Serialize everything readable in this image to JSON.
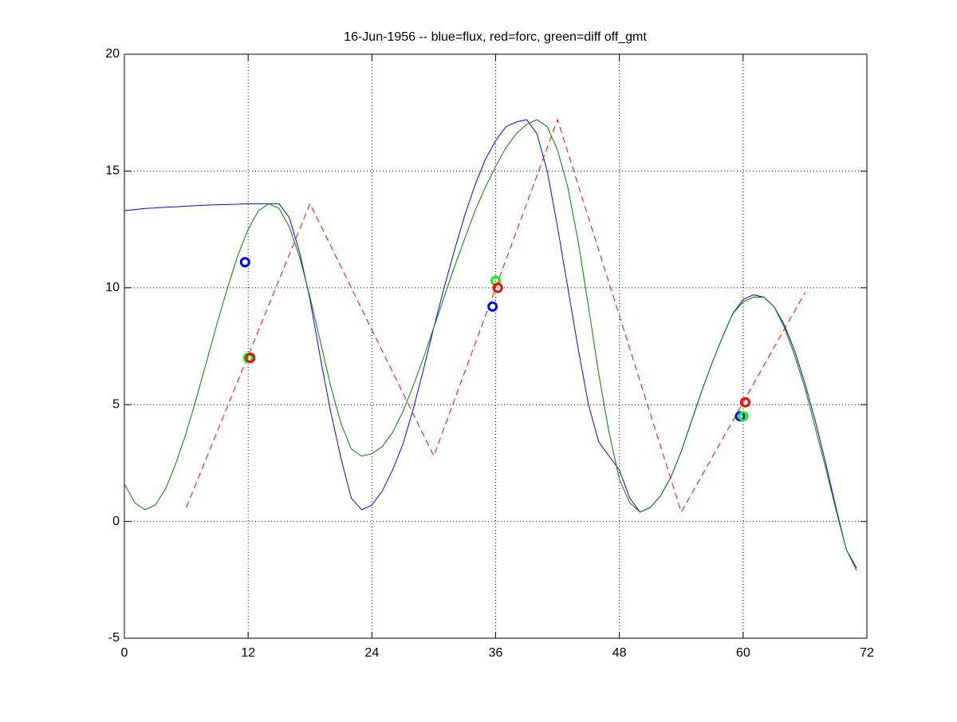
{
  "chart_data": {
    "type": "line",
    "title": "16-Jun-1956 -- blue=flux, red=forc, green=diff off_gmt",
    "xlim": [
      0,
      72
    ],
    "xticks": [
      0,
      12,
      24,
      36,
      48,
      60,
      72
    ],
    "ylim": [
      -5,
      20
    ],
    "yticks": [
      -5,
      0,
      5,
      10,
      15,
      20
    ],
    "grid": true,
    "series": [
      {
        "color": "#0000ff",
        "style": "solid",
        "x": [
          0,
          1,
          2,
          3,
          4,
          5,
          6,
          7,
          8,
          9,
          10,
          11,
          12,
          13,
          14,
          15,
          16,
          17,
          18,
          19,
          20,
          21,
          22,
          23,
          24,
          25,
          26,
          27,
          28,
          29,
          30,
          31,
          32,
          33,
          34,
          35,
          36,
          37,
          38,
          39,
          40,
          41,
          42,
          43,
          44,
          45,
          46,
          47,
          48,
          49,
          50,
          51,
          52,
          53,
          54,
          55,
          56,
          57,
          58,
          59,
          60,
          61,
          62,
          63,
          64,
          65,
          66,
          67,
          68,
          69,
          70,
          71
        ],
        "values": [
          13.3,
          13.35,
          13.4,
          13.42,
          13.45,
          13.47,
          13.5,
          13.52,
          13.54,
          13.56,
          13.57,
          13.58,
          13.6,
          13.6,
          13.6,
          13.6,
          13.0,
          11.5,
          9.5,
          7.0,
          4.7,
          2.7,
          1.0,
          0.5,
          0.7,
          1.3,
          2.2,
          3.3,
          4.8,
          6.5,
          8.3,
          10.0,
          11.6,
          13.1,
          14.4,
          15.5,
          16.3,
          16.9,
          17.1,
          17.2,
          16.6,
          15.0,
          12.6,
          10.0,
          7.4,
          5.0,
          3.4,
          2.8,
          2.2,
          1.0,
          0.4,
          0.6,
          1.1,
          1.9,
          3.0,
          4.3,
          5.6,
          6.8,
          7.9,
          8.9,
          9.5,
          9.7,
          9.6,
          9.2,
          8.4,
          7.3,
          5.9,
          4.3,
          2.5,
          0.6,
          -1.2,
          -2.0
        ]
      },
      {
        "color": "#007f00",
        "style": "solid",
        "x": [
          0,
          1,
          2,
          3,
          4,
          5,
          6,
          7,
          8,
          9,
          10,
          11,
          12,
          13,
          14,
          15,
          16,
          17,
          18,
          19,
          20,
          21,
          22,
          23,
          24,
          25,
          26,
          27,
          28,
          29,
          30,
          31,
          32,
          33,
          34,
          35,
          36,
          37,
          38,
          39,
          40,
          41,
          42,
          43,
          44,
          45,
          46,
          47,
          48,
          49,
          50,
          51,
          52,
          53,
          54,
          55,
          56,
          57,
          58,
          59,
          60,
          61,
          62,
          63,
          64,
          65,
          66,
          67,
          68,
          69,
          70,
          71
        ],
        "values": [
          1.6,
          0.8,
          0.5,
          0.7,
          1.4,
          2.5,
          3.8,
          5.3,
          6.9,
          8.5,
          10.0,
          11.4,
          12.5,
          13.3,
          13.6,
          13.4,
          12.6,
          11.3,
          9.6,
          7.7,
          5.8,
          4.2,
          3.1,
          2.8,
          2.9,
          3.2,
          3.8,
          4.7,
          5.8,
          7.0,
          8.3,
          9.6,
          10.9,
          12.1,
          13.3,
          14.3,
          15.2,
          16.0,
          16.6,
          17.0,
          17.2,
          16.9,
          15.9,
          14.3,
          12.0,
          9.2,
          6.3,
          3.8,
          1.8,
          0.8,
          0.4,
          0.6,
          1.1,
          1.9,
          3.0,
          4.3,
          5.6,
          6.8,
          7.9,
          8.9,
          9.4,
          9.6,
          9.6,
          9.2,
          8.3,
          7.1,
          5.7,
          4.0,
          2.3,
          0.5,
          -1.2,
          -2.1
        ]
      },
      {
        "color": "#ff0000",
        "style": "dashed",
        "x": [
          6,
          18,
          30,
          42,
          54,
          66
        ],
        "values": [
          0.6,
          13.6,
          2.8,
          17.2,
          0.4,
          9.8
        ]
      },
      {
        "color": "#0000ff",
        "style": "marker",
        "x": [
          11.7,
          35.7,
          59.7
        ],
        "values": [
          11.1,
          9.2,
          4.5
        ]
      },
      {
        "color": "#00ff00",
        "style": "marker",
        "x": [
          12,
          36,
          60
        ],
        "values": [
          7.0,
          10.3,
          4.5
        ]
      },
      {
        "color": "#ff0000",
        "style": "marker",
        "x": [
          12.2,
          36.2,
          60.2
        ],
        "values": [
          7.0,
          10.0,
          5.1
        ]
      }
    ]
  }
}
